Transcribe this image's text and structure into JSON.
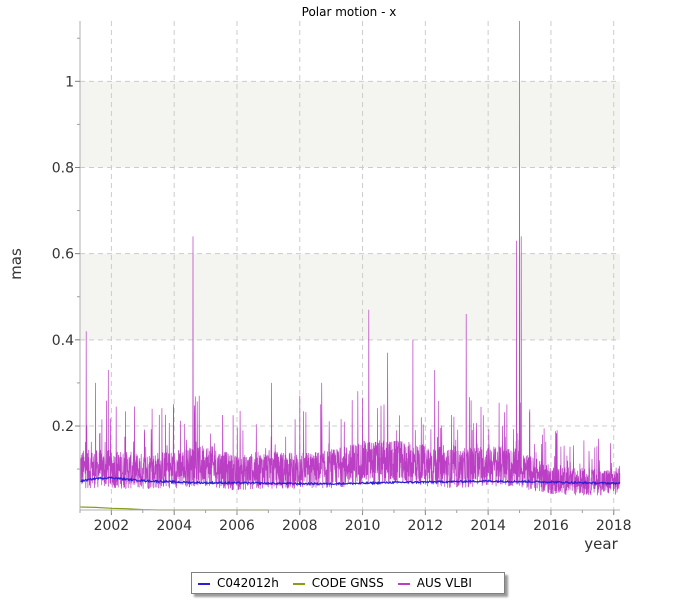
{
  "chart_data": {
    "type": "line",
    "title": "Polar motion - x",
    "xlabel": "year",
    "ylabel": "mas",
    "xlim": [
      2001.0,
      2018.2
    ],
    "ylim": [
      0.005,
      1.14
    ],
    "x_ticks": [
      2002,
      2004,
      2006,
      2008,
      2010,
      2012,
      2014,
      2016,
      2018
    ],
    "x_tick_labels": [
      "2002",
      "2004",
      "2006",
      "2008",
      "2010",
      "2012",
      "2014",
      "2016",
      "2018"
    ],
    "y_ticks": [
      0.2,
      0.4,
      0.6,
      0.8,
      1.0
    ],
    "y_tick_labels": [
      "0.2",
      "0.4",
      "0.6",
      "0.8",
      "1"
    ],
    "grid": true,
    "alternating_bands": true,
    "legend_position": "bottom",
    "series": [
      {
        "name": "C042012h",
        "color": "#2b1fd6",
        "x": [
          2001.0,
          2001.5,
          2002.0,
          2002.5,
          2003.0,
          2004.0,
          2005.0,
          2006.0,
          2007.0,
          2008.0,
          2009.0,
          2010.0,
          2011.0,
          2012.0,
          2013.0,
          2014.0,
          2015.0,
          2016.0,
          2017.0,
          2018.0,
          2018.2
        ],
        "values": [
          0.072,
          0.078,
          0.08,
          0.076,
          0.073,
          0.07,
          0.068,
          0.068,
          0.067,
          0.066,
          0.066,
          0.067,
          0.069,
          0.07,
          0.071,
          0.072,
          0.071,
          0.07,
          0.068,
          0.067,
          0.067
        ]
      },
      {
        "name": "CODE GNSS",
        "color": "#8c9c1a",
        "x": [
          2001.0,
          2001.5,
          2002.0,
          2002.5,
          2003.0,
          2003.5,
          2004.0,
          2004.5,
          2005.0,
          2006.0,
          2007.0
        ],
        "values": [
          0.012,
          0.011,
          0.009,
          0.008,
          0.006,
          0.005,
          0.004,
          0.003,
          0.002,
          0.001,
          0.0
        ]
      },
      {
        "name": "AUS VLBI",
        "color": "#bb3fc4",
        "baseline_x": [
          2001.0,
          2002.0,
          2003.0,
          2004.0,
          2005.0,
          2006.0,
          2007.0,
          2008.0,
          2009.0,
          2010.0,
          2011.0,
          2012.0,
          2013.0,
          2014.0,
          2015.0,
          2016.0,
          2017.0,
          2018.0,
          2018.2
        ],
        "baseline_values": [
          0.1,
          0.1,
          0.095,
          0.1,
          0.11,
          0.09,
          0.1,
          0.095,
          0.1,
          0.115,
          0.115,
          0.11,
          0.1,
          0.11,
          0.1,
          0.075,
          0.07,
          0.07,
          0.075
        ],
        "peaks_x": [
          2001.2,
          2001.5,
          2001.9,
          2003.3,
          2004.6,
          2004.8,
          2007.1,
          2008.0,
          2008.7,
          2010.2,
          2010.8,
          2011.6,
          2012.3,
          2013.3,
          2014.9,
          2015.0,
          2015.05,
          2016.2,
          2017.4,
          2017.9
        ],
        "peaks_values": [
          0.42,
          0.3,
          0.33,
          0.24,
          0.64,
          0.27,
          0.3,
          0.27,
          0.3,
          0.47,
          0.37,
          0.4,
          0.33,
          0.46,
          0.63,
          1.14,
          0.64,
          0.19,
          0.15,
          0.16
        ]
      }
    ]
  }
}
